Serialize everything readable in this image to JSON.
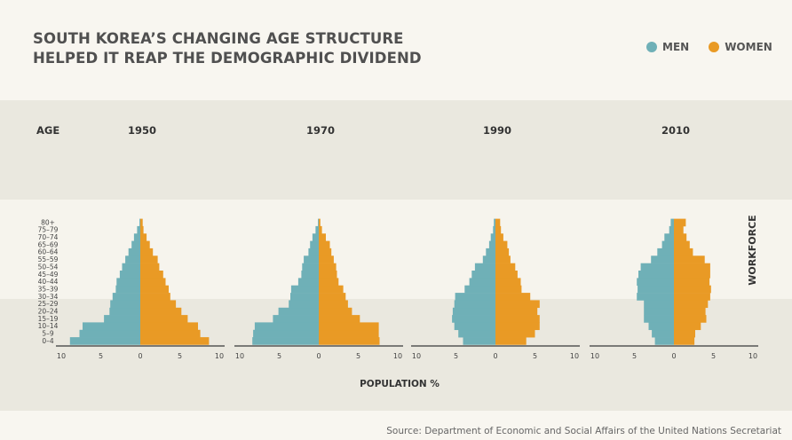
{
  "title_lines": [
    "SOUTH KOREA’S CHANGING AGE STRUCTURE",
    "HELPED IT REAP THE DEMOGRAPHIC DIVIDEND"
  ],
  "legend": [
    {
      "label": "MEN",
      "color": "#6fb0b7"
    },
    {
      "label": "WOMEN",
      "color": "#e99a25"
    }
  ],
  "source": "Source: Department of Economic and Social Affairs of the United Nations Secretariat",
  "colors": {
    "men": "#6fb0b7",
    "women": "#e99a25",
    "band_dark": "#eae8df",
    "band_light": "#f6f4ed",
    "axis": "#555555"
  },
  "chart_data": {
    "type": "bar",
    "orientation": "horizontal-population-pyramid",
    "y_axis_label": "AGE",
    "x_axis_label": "POPULATION %",
    "side_label": "WORKFORCE",
    "age_groups": [
      "0–4",
      "5–9",
      "10–14",
      "15–19",
      "20–24",
      "25–29",
      "30–34",
      "35–39",
      "40–44",
      "45–49",
      "50–54",
      "55–59",
      "60–64",
      "65–69",
      "70–74",
      "75–79",
      "80+"
    ],
    "x_ticks": [
      "10",
      "5",
      "0",
      "5",
      "10"
    ],
    "xlim": [
      -10,
      10
    ],
    "panels": [
      {
        "year": "1950",
        "men": [
          8.9,
          7.7,
          7.3,
          4.6,
          3.9,
          3.8,
          3.5,
          3.1,
          3.0,
          2.6,
          2.3,
          1.9,
          1.5,
          1.1,
          0.8,
          0.4,
          0.1
        ],
        "women": [
          8.7,
          7.6,
          7.3,
          6.0,
          5.2,
          4.5,
          3.8,
          3.6,
          3.2,
          2.9,
          2.4,
          2.2,
          1.6,
          1.2,
          0.8,
          0.4,
          0.3
        ]
      },
      {
        "year": "1970",
        "men": [
          8.4,
          8.3,
          8.1,
          5.8,
          5.1,
          3.8,
          3.6,
          3.5,
          2.6,
          2.2,
          2.1,
          1.9,
          1.3,
          1.1,
          0.8,
          0.4,
          0.1
        ],
        "women": [
          7.7,
          7.6,
          7.6,
          5.2,
          4.2,
          3.7,
          3.4,
          3.1,
          2.5,
          2.3,
          2.2,
          1.9,
          1.6,
          1.4,
          0.9,
          0.4,
          0.2
        ]
      },
      {
        "year": "1990",
        "men": [
          4.1,
          4.7,
          5.2,
          5.5,
          5.4,
          5.2,
          5.1,
          3.9,
          3.3,
          3.0,
          2.6,
          1.6,
          1.2,
          0.8,
          0.6,
          0.3,
          0.2
        ],
        "women": [
          3.9,
          5.0,
          5.6,
          5.6,
          5.3,
          5.6,
          4.4,
          3.3,
          3.2,
          2.8,
          2.5,
          1.9,
          1.7,
          1.5,
          1.0,
          0.7,
          0.6
        ]
      },
      {
        "year": "2010",
        "men": [
          2.4,
          2.8,
          3.2,
          3.8,
          3.8,
          3.8,
          4.7,
          4.6,
          4.7,
          4.5,
          4.2,
          2.9,
          2.1,
          1.5,
          1.2,
          0.6,
          0.4
        ],
        "women": [
          2.6,
          2.7,
          3.4,
          4.1,
          4.0,
          4.3,
          4.6,
          4.7,
          4.5,
          4.6,
          4.6,
          3.9,
          2.4,
          2.0,
          1.6,
          1.2,
          1.5
        ]
      }
    ]
  }
}
